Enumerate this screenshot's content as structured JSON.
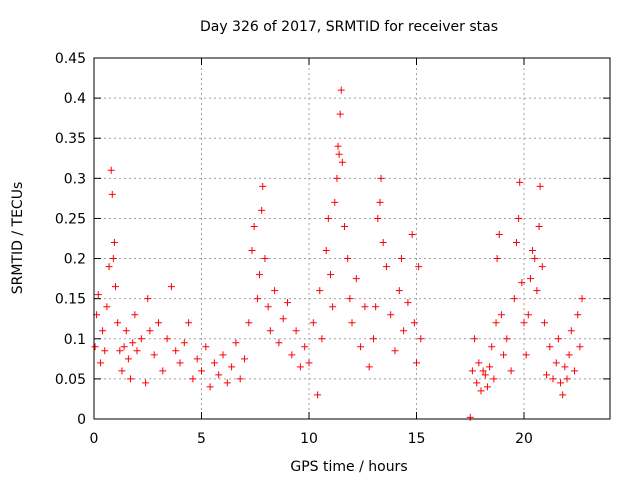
{
  "chart_data": {
    "type": "scatter",
    "title": "Day 326 of 2017, SRMTID for receiver stas",
    "xlabel": "GPS time / hours",
    "ylabel": "SRMTID / TECUs",
    "xlim": [
      0,
      24
    ],
    "ylim": [
      0,
      0.45
    ],
    "x_ticks": [
      0,
      5,
      10,
      15,
      20
    ],
    "y_ticks": [
      0,
      0.05,
      0.1,
      0.15,
      0.2,
      0.25,
      0.3,
      0.35,
      0.4,
      0.45
    ],
    "x_tick_labels": [
      "0",
      "5",
      "10",
      "15",
      "20"
    ],
    "y_tick_labels": [
      "0",
      "0.05",
      "0.1",
      "0.15",
      "0.2",
      "0.25",
      "0.3",
      "0.35",
      "0.4",
      "0.45"
    ],
    "grid": true,
    "marker": "+",
    "marker_color": "#ff0000",
    "data_gap_hours": [
      15.3,
      17.5
    ],
    "series": [
      {
        "name": "SRMTID",
        "points": [
          [
            0.05,
            0.09
          ],
          [
            0.12,
            0.13
          ],
          [
            0.2,
            0.155
          ],
          [
            0.3,
            0.07
          ],
          [
            0.4,
            0.11
          ],
          [
            0.5,
            0.085
          ],
          [
            0.6,
            0.14
          ],
          [
            0.7,
            0.19
          ],
          [
            0.8,
            0.31
          ],
          [
            0.85,
            0.28
          ],
          [
            0.9,
            0.2
          ],
          [
            0.95,
            0.22
          ],
          [
            1.0,
            0.165
          ],
          [
            1.1,
            0.12
          ],
          [
            1.2,
            0.085
          ],
          [
            1.3,
            0.06
          ],
          [
            1.4,
            0.09
          ],
          [
            1.5,
            0.11
          ],
          [
            1.6,
            0.075
          ],
          [
            1.7,
            0.05
          ],
          [
            1.8,
            0.095
          ],
          [
            1.9,
            0.13
          ],
          [
            2.0,
            0.085
          ],
          [
            2.2,
            0.1
          ],
          [
            2.4,
            0.045
          ],
          [
            2.5,
            0.15
          ],
          [
            2.6,
            0.11
          ],
          [
            2.8,
            0.08
          ],
          [
            3.0,
            0.12
          ],
          [
            3.2,
            0.06
          ],
          [
            3.4,
            0.1
          ],
          [
            3.6,
            0.165
          ],
          [
            3.8,
            0.085
          ],
          [
            4.0,
            0.07
          ],
          [
            4.2,
            0.095
          ],
          [
            4.4,
            0.12
          ],
          [
            4.6,
            0.05
          ],
          [
            4.8,
            0.075
          ],
          [
            5.0,
            0.06
          ],
          [
            5.2,
            0.09
          ],
          [
            5.4,
            0.04
          ],
          [
            5.6,
            0.07
          ],
          [
            5.8,
            0.055
          ],
          [
            6.0,
            0.08
          ],
          [
            6.2,
            0.045
          ],
          [
            6.4,
            0.065
          ],
          [
            6.6,
            0.095
          ],
          [
            6.8,
            0.05
          ],
          [
            7.0,
            0.075
          ],
          [
            7.2,
            0.12
          ],
          [
            7.35,
            0.21
          ],
          [
            7.45,
            0.24
          ],
          [
            7.6,
            0.15
          ],
          [
            7.7,
            0.18
          ],
          [
            7.8,
            0.26
          ],
          [
            7.85,
            0.29
          ],
          [
            7.95,
            0.2
          ],
          [
            8.1,
            0.14
          ],
          [
            8.2,
            0.11
          ],
          [
            8.4,
            0.16
          ],
          [
            8.6,
            0.095
          ],
          [
            8.8,
            0.125
          ],
          [
            9.0,
            0.145
          ],
          [
            9.2,
            0.08
          ],
          [
            9.4,
            0.11
          ],
          [
            9.6,
            0.065
          ],
          [
            9.8,
            0.09
          ],
          [
            10.0,
            0.07
          ],
          [
            10.2,
            0.12
          ],
          [
            10.4,
            0.03
          ],
          [
            10.5,
            0.16
          ],
          [
            10.6,
            0.1
          ],
          [
            10.8,
            0.21
          ],
          [
            10.9,
            0.25
          ],
          [
            11.0,
            0.18
          ],
          [
            11.1,
            0.14
          ],
          [
            11.2,
            0.27
          ],
          [
            11.3,
            0.3
          ],
          [
            11.35,
            0.34
          ],
          [
            11.4,
            0.33
          ],
          [
            11.45,
            0.38
          ],
          [
            11.5,
            0.41
          ],
          [
            11.55,
            0.32
          ],
          [
            11.65,
            0.24
          ],
          [
            11.8,
            0.2
          ],
          [
            11.9,
            0.15
          ],
          [
            12.0,
            0.12
          ],
          [
            12.2,
            0.175
          ],
          [
            12.4,
            0.09
          ],
          [
            12.6,
            0.14
          ],
          [
            12.8,
            0.065
          ],
          [
            13.0,
            0.1
          ],
          [
            13.1,
            0.14
          ],
          [
            13.2,
            0.25
          ],
          [
            13.3,
            0.27
          ],
          [
            13.35,
            0.3
          ],
          [
            13.45,
            0.22
          ],
          [
            13.6,
            0.19
          ],
          [
            13.8,
            0.13
          ],
          [
            14.0,
            0.085
          ],
          [
            14.2,
            0.16
          ],
          [
            14.3,
            0.2
          ],
          [
            14.4,
            0.11
          ],
          [
            14.6,
            0.145
          ],
          [
            14.8,
            0.23
          ],
          [
            14.9,
            0.12
          ],
          [
            15.0,
            0.07
          ],
          [
            15.1,
            0.19
          ],
          [
            15.2,
            0.1
          ],
          [
            17.5,
            0.002
          ],
          [
            17.6,
            0.06
          ],
          [
            17.7,
            0.1
          ],
          [
            17.8,
            0.045
          ],
          [
            17.9,
            0.07
          ],
          [
            18.0,
            0.035
          ],
          [
            18.1,
            0.06
          ],
          [
            18.2,
            0.055
          ],
          [
            18.3,
            0.04
          ],
          [
            18.4,
            0.065
          ],
          [
            18.5,
            0.09
          ],
          [
            18.6,
            0.05
          ],
          [
            18.7,
            0.12
          ],
          [
            18.75,
            0.2
          ],
          [
            18.85,
            0.23
          ],
          [
            18.95,
            0.13
          ],
          [
            19.05,
            0.08
          ],
          [
            19.2,
            0.1
          ],
          [
            19.4,
            0.06
          ],
          [
            19.55,
            0.15
          ],
          [
            19.65,
            0.22
          ],
          [
            19.75,
            0.25
          ],
          [
            19.8,
            0.295
          ],
          [
            19.9,
            0.17
          ],
          [
            20.0,
            0.12
          ],
          [
            20.1,
            0.08
          ],
          [
            20.2,
            0.13
          ],
          [
            20.3,
            0.175
          ],
          [
            20.4,
            0.21
          ],
          [
            20.5,
            0.2
          ],
          [
            20.6,
            0.16
          ],
          [
            20.7,
            0.24
          ],
          [
            20.75,
            0.29
          ],
          [
            20.85,
            0.19
          ],
          [
            20.95,
            0.12
          ],
          [
            21.05,
            0.055
          ],
          [
            21.2,
            0.09
          ],
          [
            21.35,
            0.05
          ],
          [
            21.5,
            0.07
          ],
          [
            21.6,
            0.1
          ],
          [
            21.7,
            0.045
          ],
          [
            21.8,
            0.03
          ],
          [
            21.9,
            0.065
          ],
          [
            22.0,
            0.05
          ],
          [
            22.1,
            0.08
          ],
          [
            22.2,
            0.11
          ],
          [
            22.35,
            0.06
          ],
          [
            22.5,
            0.13
          ],
          [
            22.6,
            0.09
          ],
          [
            22.7,
            0.15
          ]
        ]
      }
    ]
  }
}
